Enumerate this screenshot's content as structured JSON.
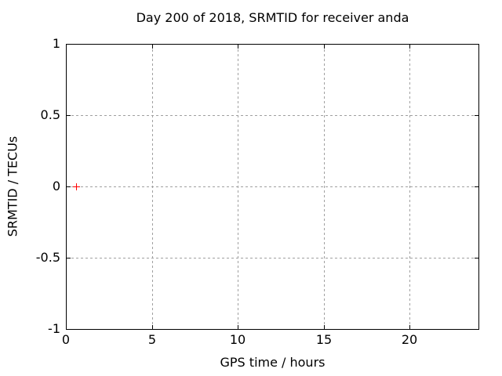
{
  "chart_data": {
    "type": "scatter",
    "title": "Day 200 of 2018, SRMTID for receiver anda",
    "xlabel": "GPS time / hours",
    "ylabel": "SRMTID / TECUs",
    "xlim": [
      0,
      24
    ],
    "ylim": [
      -1,
      1
    ],
    "xticks": [
      0,
      5,
      10,
      15,
      20
    ],
    "yticks": [
      -1,
      -0.5,
      0,
      0.5,
      1
    ],
    "grid": true,
    "grid_style": "dotted",
    "legend_position": "none",
    "background_color": "#ffffff",
    "axis_color": "#000000",
    "grid_color": "#a0a0a0",
    "text_color": "#000000",
    "series": [
      {
        "name": "SRMTID",
        "marker": "plus",
        "color": "#ff0000",
        "points": [
          {
            "x": 0.6,
            "y": 0.0
          }
        ]
      }
    ]
  }
}
